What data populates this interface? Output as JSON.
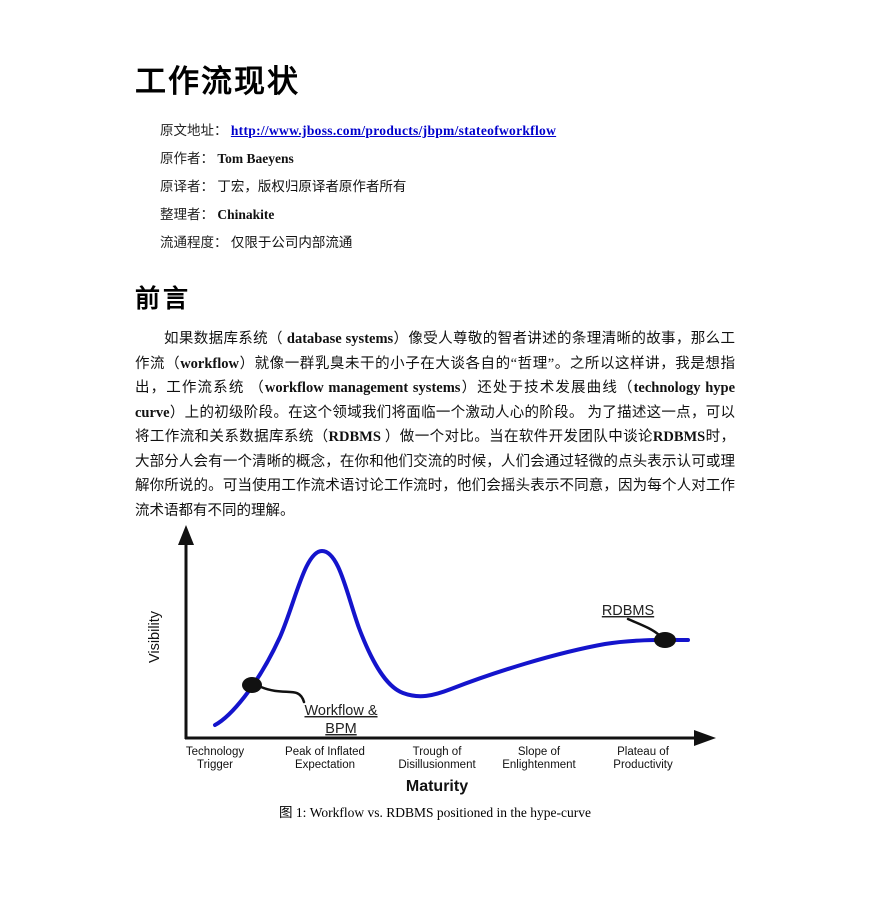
{
  "page": {
    "title": "工作流现状",
    "meta": [
      {
        "label": "原文地址：",
        "value": "http://www.jboss.com/products/jbpm/stateofworkflow"
      },
      {
        "label": "原作者：",
        "value": "Tom Baeyens"
      },
      {
        "label": "原译者：",
        "value": "丁宏，版权归原译者原作者所有"
      },
      {
        "label": "整理者：",
        "value": "Chinakite"
      },
      {
        "label": "流通程度：",
        "value": "仅限于公司内部流通"
      }
    ],
    "section_heading": "前言",
    "paragraph_segments": [
      {
        "text": "如果数据库系统（ ",
        "bold": false
      },
      {
        "text": "database systems",
        "bold": true
      },
      {
        "text": "）像受人尊敬的智者讲述的条理清晰的故事，那么工作流（",
        "bold": false
      },
      {
        "text": "workflow",
        "bold": true
      },
      {
        "text": "）就像一群乳臭未干的小子在大谈各自的“哲理”。之所以这样讲，我是想指出，工作流系统 （",
        "bold": false
      },
      {
        "text": "workflow management systems",
        "bold": true
      },
      {
        "text": "）还处于技术发展曲线（",
        "bold": false
      },
      {
        "text": "technology hype curve",
        "bold": true
      },
      {
        "text": "）上的初级阶段。在这个领域我们将面临一个激动人心的阶段。 为了描述这一点，可以将工作流和关系数据库系统（",
        "bold": false
      },
      {
        "text": "RDBMS",
        "bold": true
      },
      {
        "text": " ）做一个对比。当在软件开发团队中谈论",
        "bold": false
      },
      {
        "text": "RDBMS",
        "bold": true
      },
      {
        "text": "时，大部分人会有一个清晰的概念，在你和他们交流的时候，人们会通过轻微的点头表示认可或理解你所说的。可当使用工作流术语讨论工作流时，他们会摇头表示不同意，因为每个人对工作流术语都有不同的理解。",
        "bold": false
      }
    ]
  },
  "chart_data": {
    "type": "line",
    "title": "",
    "xlabel": "Maturity",
    "ylabel": "Visibility",
    "grid": false,
    "x_axis_numeric": false,
    "y_axis_numeric": false,
    "curve_color": "#1414cc",
    "stages": [
      "Technology Trigger",
      "Peak of Inflated Expectation",
      "Trough of Disillusionment",
      "Slope of Enlightenment",
      "Plateau of Productivity"
    ],
    "stage_lines": [
      [
        "Technology",
        "Trigger"
      ],
      [
        "Peak of Inflated",
        "Expectation"
      ],
      [
        "Trough of",
        "Disillusionment"
      ],
      [
        "Slope of",
        "Enlightenment"
      ],
      [
        "Plateau of",
        "Productivity"
      ]
    ],
    "series": [
      {
        "name": "hype-curve",
        "x_pct": [
          6,
          9,
          13,
          16,
          20,
          26,
          31,
          36,
          42,
          46,
          52,
          60,
          70,
          80,
          91,
          96
        ],
        "visibility_pct": [
          7,
          14,
          28,
          48,
          80,
          100,
          82,
          52,
          30,
          24,
          26,
          33,
          41,
          48,
          53,
          53
        ]
      }
    ],
    "annotations": [
      {
        "label": "Workflow & BPM",
        "lines": [
          "Workflow &",
          "BPM"
        ],
        "x_pct": 13,
        "visibility_pct": 28,
        "position": "rising slope before peak"
      },
      {
        "label": "RDBMS",
        "lines": [
          "RDBMS"
        ],
        "x_pct": 91,
        "visibility_pct": 53,
        "position": "plateau of productivity"
      }
    ],
    "caption": "图 1: Workflow vs. RDBMS positioned in the hype-curve"
  }
}
